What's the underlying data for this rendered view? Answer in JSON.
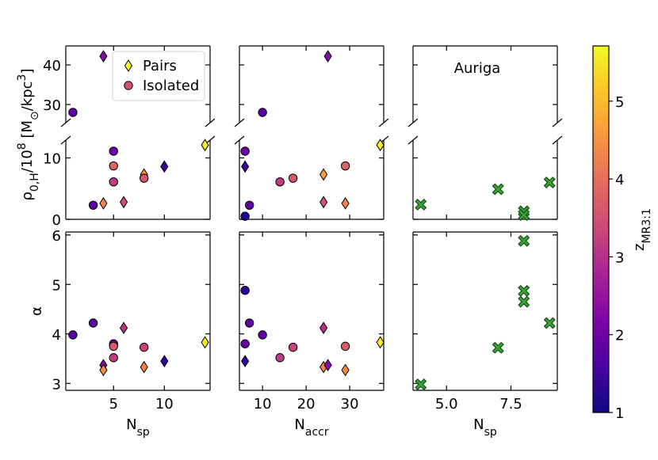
{
  "chart_data": [
    {
      "type": "scatter",
      "xlim": [
        0.3,
        14.5
      ],
      "xticks": [
        5,
        10
      ],
      "ylim": [
        25.4,
        44.8
      ],
      "yticks": [
        30,
        40
      ],
      "show_yticklabels": true,
      "legend": "upper right",
      "series": [
        {
          "name": "Pairs",
          "marker": "diamond",
          "legend_color": "#f0f921",
          "x": [
            4
          ],
          "values": [
            42.2
          ],
          "z": [
            2.3
          ]
        },
        {
          "name": "Isolated",
          "marker": "circle",
          "legend_color": "#d5536f",
          "x": [
            1
          ],
          "values": [
            28.0
          ],
          "z": [
            1.8
          ]
        }
      ]
    },
    {
      "type": "scatter",
      "xlim": [
        4.7,
        37.8
      ],
      "xticks": [
        10,
        20,
        30
      ],
      "ylim": [
        25.4,
        44.8
      ],
      "yticks": [
        30,
        40
      ],
      "series": [
        {
          "marker": "diamond",
          "x": [
            25
          ],
          "values": [
            42.2
          ],
          "z": [
            2.3
          ]
        },
        {
          "marker": "circle",
          "x": [
            10
          ],
          "values": [
            28.0
          ],
          "z": [
            1.8
          ]
        }
      ]
    },
    {
      "type": "scatter",
      "xlim": [
        3.7,
        9.3
      ],
      "xticks": [
        5,
        7.5
      ],
      "ylim": [
        25.4,
        44.8
      ],
      "yticks": [
        30,
        40
      ],
      "annotation": "Auriga",
      "series": []
    },
    {
      "type": "scatter",
      "xlim": [
        0.3,
        14.5
      ],
      "xticks": [
        5,
        10
      ],
      "ylim": [
        0,
        12.9
      ],
      "yticks": [
        0,
        10
      ],
      "show_yticklabels": true,
      "ylabel": [
        {
          "text": "ρ"
        },
        {
          "text": "0,H",
          "shift": "sub"
        },
        {
          "text": "/10"
        },
        {
          "text": "8",
          "shift": "super"
        },
        {
          "text": " [M"
        },
        {
          "text": "⊙",
          "shift": "sub"
        },
        {
          "text": "/kpc"
        },
        {
          "text": "3",
          "shift": "super"
        },
        {
          "text": "]"
        }
      ],
      "series": [
        {
          "marker": "diamond",
          "x": [
            4,
            6,
            8,
            10,
            14
          ],
          "values": [
            2.6,
            2.8,
            7.3,
            8.6,
            12.1
          ],
          "z": [
            4.3,
            3.5,
            4.6,
            1.4,
            5.6
          ]
        },
        {
          "marker": "circle",
          "x": [
            3,
            5,
            5,
            5,
            8
          ],
          "values": [
            2.3,
            11.1,
            8.7,
            6.1,
            6.7
          ],
          "z": [
            1.8,
            2.0,
            3.8,
            3.2,
            3.6
          ]
        }
      ]
    },
    {
      "type": "scatter",
      "xlim": [
        4.7,
        37.8
      ],
      "xticks": [
        10,
        20,
        30
      ],
      "ylim": [
        0,
        12.9
      ],
      "yticks": [
        0,
        10
      ],
      "series": [
        {
          "marker": "diamond",
          "x": [
            6,
            24,
            24,
            29,
            37
          ],
          "values": [
            8.6,
            7.3,
            2.8,
            2.6,
            12.1
          ],
          "z": [
            1.4,
            4.6,
            3.5,
            4.3,
            5.6
          ]
        },
        {
          "marker": "circle",
          "x": [
            6,
            7,
            6,
            14,
            17,
            29
          ],
          "values": [
            11.1,
            2.3,
            0.5,
            6.1,
            6.7,
            8.7
          ],
          "z": [
            2.0,
            1.8,
            1.2,
            3.2,
            3.6,
            3.8
          ]
        }
      ]
    },
    {
      "type": "scatter",
      "xlim": [
        3.7,
        9.3
      ],
      "xticks": [
        5,
        7.5
      ],
      "ylim": [
        0,
        12.9
      ],
      "yticks": [
        0,
        10
      ],
      "series": [
        {
          "marker": "x",
          "color": "#36a536",
          "x": [
            4,
            7,
            8,
            8,
            9
          ],
          "values": [
            2.4,
            4.9,
            1.3,
            0.7,
            6.0
          ]
        }
      ]
    },
    {
      "type": "scatter",
      "xlim": [
        0.3,
        14.5
      ],
      "xticks": [
        5,
        10
      ],
      "ylim": [
        2.86,
        6.06
      ],
      "yticks": [
        3,
        4,
        5,
        6
      ],
      "show_yticklabels": true,
      "show_xticklabels": true,
      "ylabel": [
        {
          "text": "α"
        }
      ],
      "xlabel": [
        {
          "text": "N"
        },
        {
          "text": "sp",
          "shift": "sub"
        }
      ],
      "series": [
        {
          "marker": "diamond",
          "x": [
            4,
            4,
            6,
            8,
            10,
            14
          ],
          "values": [
            3.37,
            3.27,
            4.12,
            3.33,
            3.45,
            3.83
          ],
          "z": [
            2.3,
            4.4,
            3.0,
            4.3,
            1.4,
            5.6
          ]
        },
        {
          "marker": "circle",
          "x": [
            1,
            3,
            5,
            5,
            5,
            8
          ],
          "values": [
            3.98,
            4.22,
            3.8,
            3.75,
            3.52,
            3.73
          ],
          "z": [
            1.8,
            1.8,
            1.9,
            3.7,
            3.2,
            3.3
          ]
        }
      ]
    },
    {
      "type": "scatter",
      "xlim": [
        4.7,
        37.8
      ],
      "xticks": [
        10,
        20,
        30
      ],
      "ylim": [
        2.86,
        6.06
      ],
      "yticks": [
        3,
        4,
        5,
        6
      ],
      "show_xticklabels": true,
      "xlabel": [
        {
          "text": "N"
        },
        {
          "text": "accr",
          "shift": "sub"
        }
      ],
      "series": [
        {
          "marker": "diamond",
          "x": [
            6,
            24,
            24,
            25,
            29,
            37
          ],
          "values": [
            3.45,
            4.12,
            3.33,
            3.37,
            3.27,
            3.83
          ],
          "z": [
            1.4,
            3.0,
            4.3,
            2.3,
            4.4,
            5.6
          ]
        },
        {
          "marker": "circle",
          "x": [
            6,
            6,
            7,
            10,
            14,
            17,
            29
          ],
          "values": [
            4.88,
            3.8,
            4.22,
            3.98,
            3.52,
            3.73,
            3.75
          ],
          "z": [
            1.3,
            1.9,
            1.8,
            1.8,
            3.2,
            3.3,
            3.7
          ]
        }
      ]
    },
    {
      "type": "scatter",
      "xlim": [
        3.7,
        9.3
      ],
      "xticks": [
        {
          "value": 5,
          "label": "5.0"
        },
        {
          "value": 7.5,
          "label": "7.5"
        }
      ],
      "ylim": [
        2.86,
        6.06
      ],
      "yticks": [
        3,
        4,
        5,
        6
      ],
      "show_xticklabels": true,
      "xlabel": [
        {
          "text": "N"
        },
        {
          "text": "sp",
          "shift": "sub"
        }
      ],
      "series": [
        {
          "marker": "x",
          "color": "#36a536",
          "x": [
            4,
            7,
            8,
            8,
            8,
            9
          ],
          "values": [
            2.98,
            3.72,
            5.88,
            4.87,
            4.65,
            4.22
          ]
        }
      ]
    },
    {
      "type": "colorbar",
      "colormap": "plasma",
      "clim": [
        1,
        5.71
      ],
      "ticks": [
        1,
        2,
        3,
        4,
        5
      ],
      "label": [
        {
          "text": "z"
        },
        {
          "text": "MR3:1",
          "shift": "sub"
        }
      ]
    }
  ]
}
